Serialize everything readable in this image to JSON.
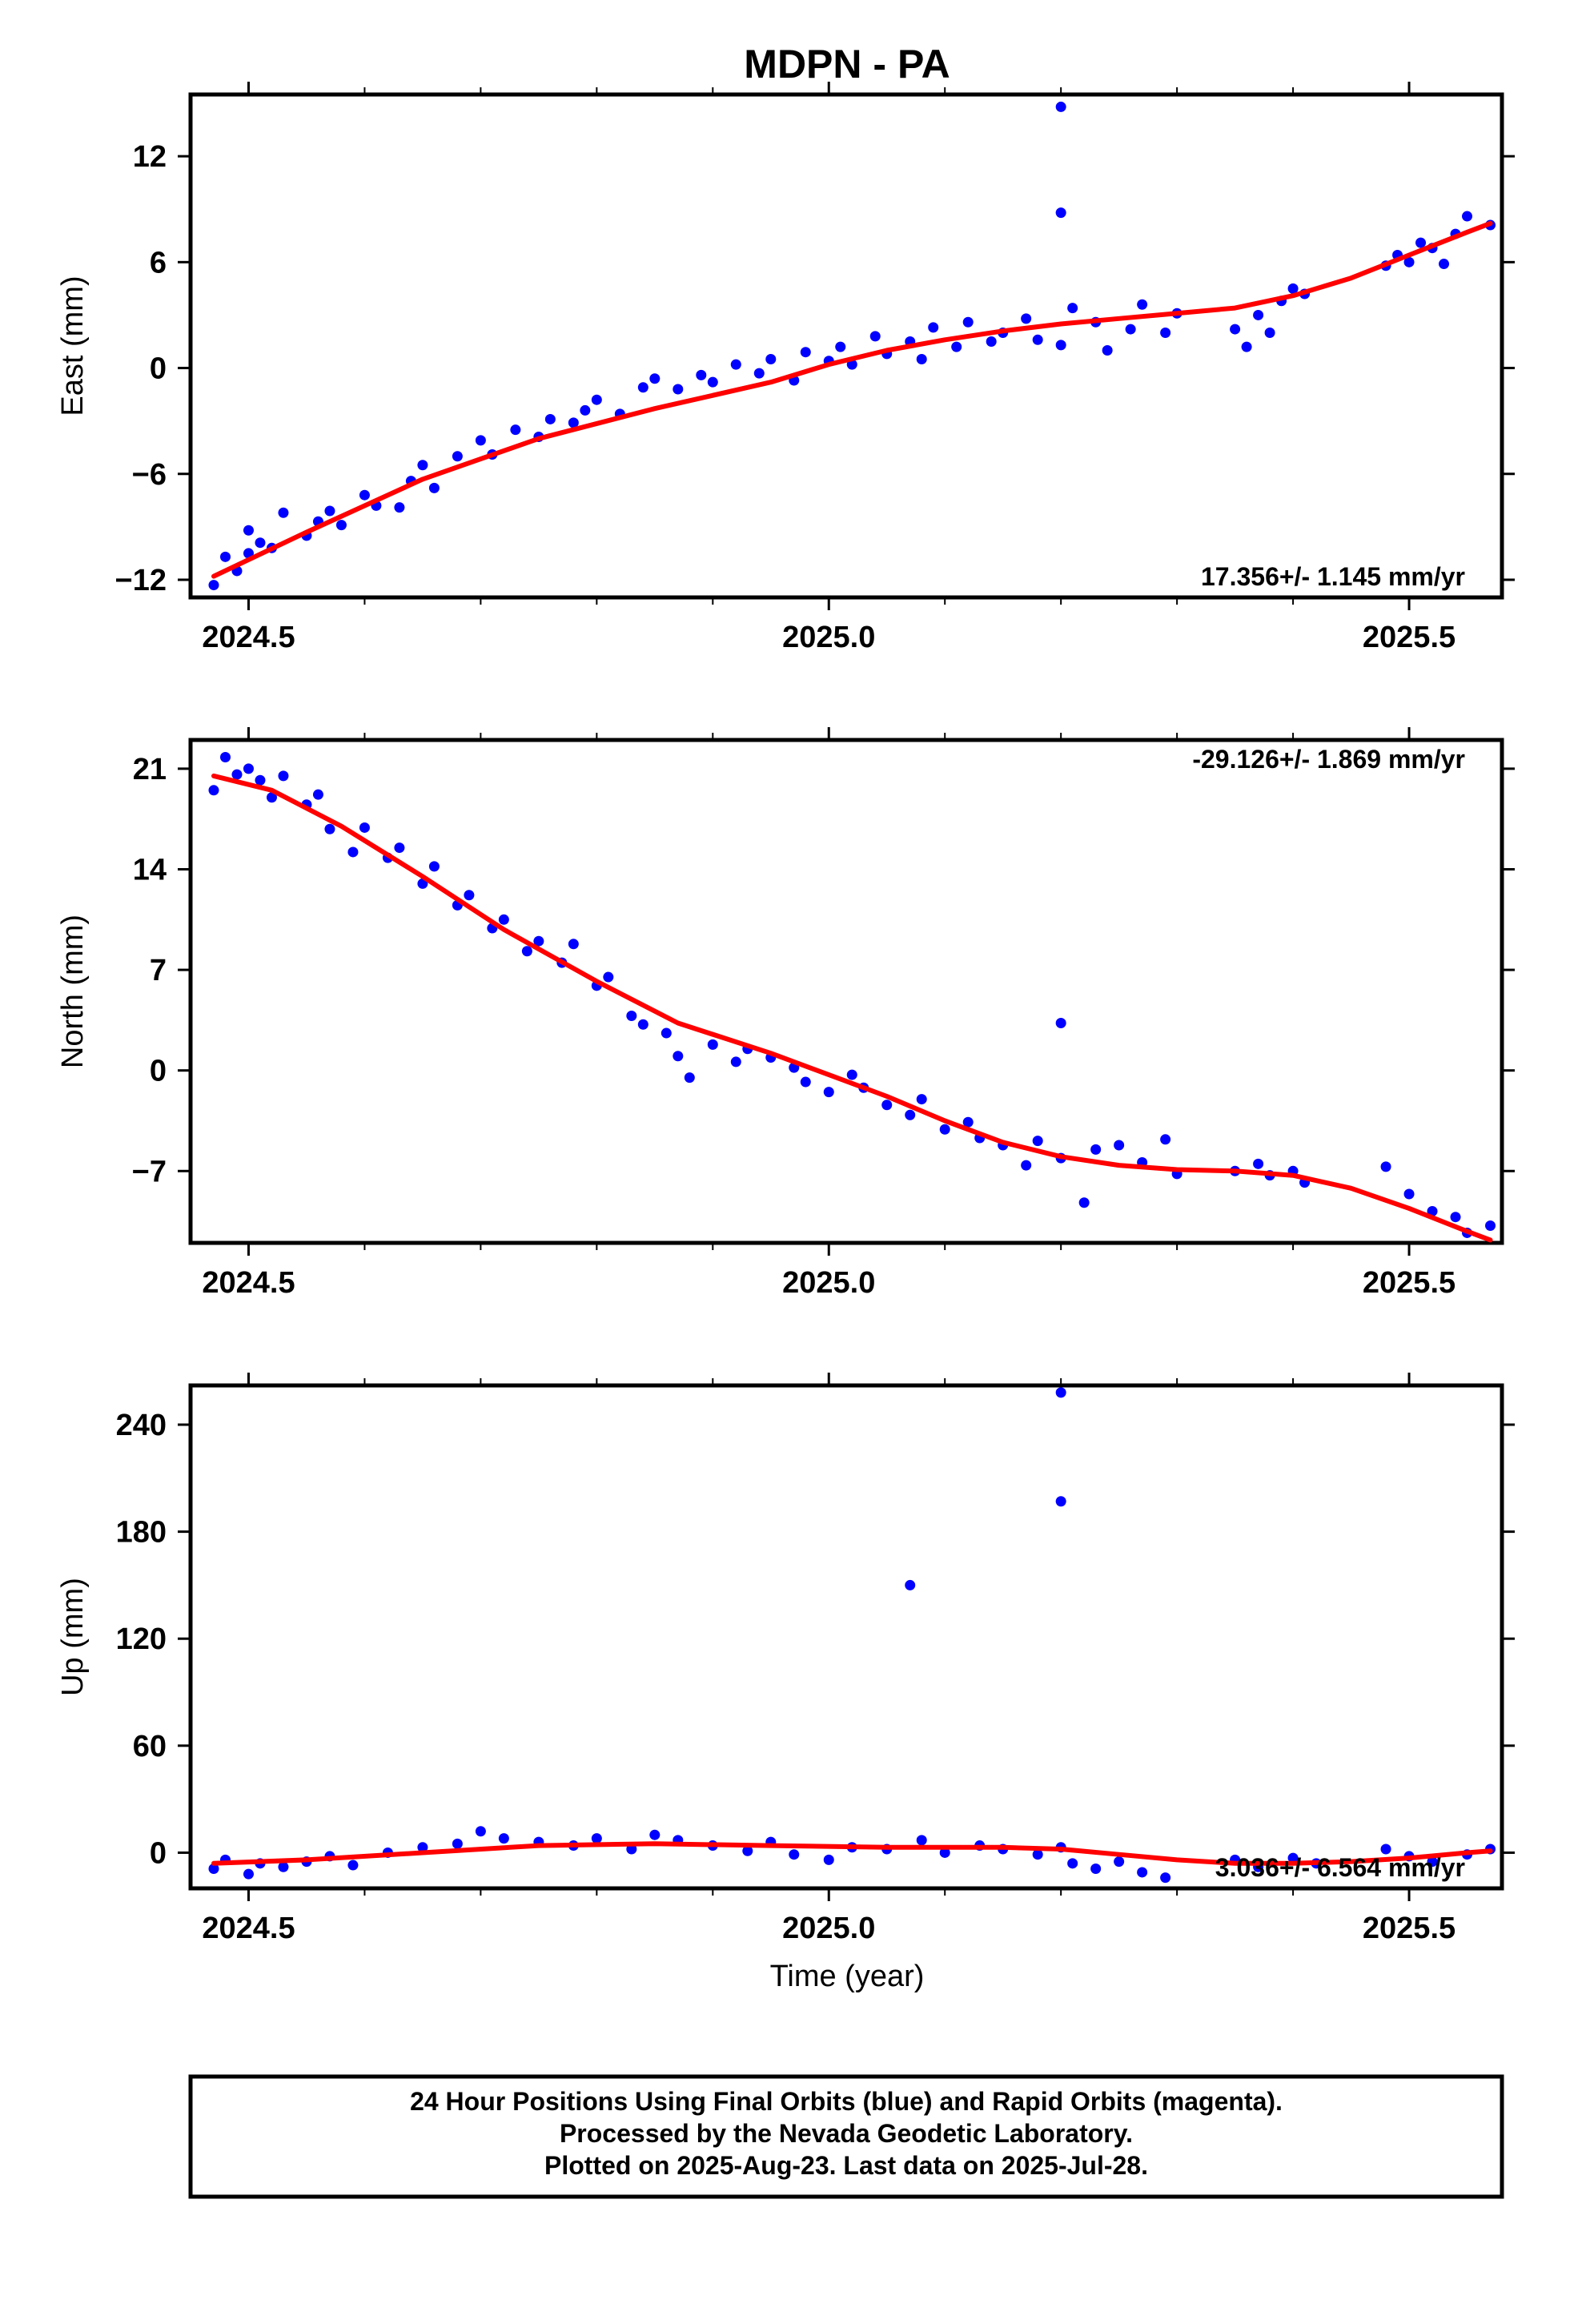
{
  "chart_data": {
    "type": "scatter",
    "title": "MDPN - PA",
    "xlabel": "Time (year)",
    "xlim": [
      2024.45,
      2025.58
    ],
    "series_colors": {
      "final_orbits": "#0000ff",
      "fit": "#ff0000"
    },
    "panels": [
      {
        "name": "east",
        "ylabel": "East (mm)",
        "ylim": [
          -13,
          15.5
        ],
        "yticks": [
          -12,
          -6,
          0,
          6,
          12
        ],
        "ytick_labels": [
          "−12",
          "−6",
          "0",
          "6",
          "12"
        ],
        "xticks": [
          2024.5,
          2025.0,
          2025.5
        ],
        "xtick_labels": [
          "2024.5",
          "2025.0",
          "2025.5"
        ],
        "rate_text": "17.356+/- 1.145 mm/yr",
        "rate_position": "bottom-right",
        "fit": {
          "x": [
            2024.47,
            2024.55,
            2024.65,
            2024.75,
            2024.85,
            2024.95,
            2025.0,
            2025.05,
            2025.1,
            2025.15,
            2025.2,
            2025.25,
            2025.3,
            2025.35,
            2025.4,
            2025.45,
            2025.5,
            2025.55,
            2025.57
          ],
          "y": [
            -11.8,
            -9.3,
            -6.3,
            -4.0,
            -2.3,
            -0.8,
            0.2,
            1.0,
            1.6,
            2.1,
            2.5,
            2.8,
            3.1,
            3.4,
            4.1,
            5.1,
            6.4,
            7.7,
            8.2
          ]
        },
        "outliers": {
          "x": [
            2025.2,
            2025.2
          ],
          "y": [
            14.8,
            8.8
          ]
        },
        "series": [
          {
            "name": "Final Orbits",
            "x": [
              2024.47,
              2024.48,
              2024.49,
              2024.5,
              2024.5,
              2024.51,
              2024.52,
              2024.53,
              2024.55,
              2024.56,
              2024.57,
              2024.58,
              2024.6,
              2024.61,
              2024.63,
              2024.64,
              2024.65,
              2024.66,
              2024.68,
              2024.7,
              2024.71,
              2024.73,
              2024.75,
              2024.76,
              2024.78,
              2024.79,
              2024.8,
              2024.82,
              2024.84,
              2024.85,
              2024.87,
              2024.89,
              2024.9,
              2024.92,
              2024.94,
              2024.95,
              2024.97,
              2024.98,
              2025.0,
              2025.01,
              2025.02,
              2025.04,
              2025.05,
              2025.07,
              2025.08,
              2025.09,
              2025.11,
              2025.12,
              2025.14,
              2025.15,
              2025.17,
              2025.18,
              2025.2,
              2025.21,
              2025.23,
              2025.24,
              2025.26,
              2025.27,
              2025.29,
              2025.3,
              2025.35,
              2025.36,
              2025.37,
              2025.38,
              2025.39,
              2025.4,
              2025.41,
              2025.48,
              2025.49,
              2025.5,
              2025.51,
              2025.52,
              2025.53,
              2025.54,
              2025.55,
              2025.57
            ],
            "y": [
              -12.3,
              -10.7,
              -11.5,
              -9.2,
              -10.5,
              -9.9,
              -10.2,
              -8.2,
              -9.5,
              -8.7,
              -8.1,
              -8.9,
              -7.2,
              -7.8,
              -7.9,
              -6.4,
              -5.5,
              -6.8,
              -5.0,
              -4.1,
              -4.9,
              -3.5,
              -3.9,
              -2.9,
              -3.1,
              -2.4,
              -1.8,
              -2.6,
              -1.1,
              -0.6,
              -1.2,
              -0.4,
              -0.8,
              0.2,
              -0.3,
              0.5,
              -0.7,
              0.9,
              0.4,
              1.2,
              0.2,
              1.8,
              0.8,
              1.5,
              0.5,
              2.3,
              1.2,
              2.6,
              1.5,
              2.0,
              2.8,
              1.6,
              1.3,
              3.4,
              2.6,
              1.0,
              2.2,
              3.6,
              2.0,
              3.1,
              2.2,
              1.2,
              3.0,
              2.0,
              3.8,
              4.5,
              4.2,
              5.8,
              6.4,
              6.0,
              7.1,
              6.8,
              5.9,
              7.6,
              8.6,
              8.1
            ]
          }
        ]
      },
      {
        "name": "north",
        "ylabel": "North (mm)",
        "ylim": [
          -12,
          23
        ],
        "yticks": [
          -7,
          0,
          7,
          14,
          21
        ],
        "ytick_labels": [
          "−7",
          "0",
          "7",
          "14",
          "21"
        ],
        "xticks": [
          2024.5,
          2025.0,
          2025.5
        ],
        "xtick_labels": [
          "2024.5",
          "2025.0",
          "2025.5"
        ],
        "rate_text": "-29.126+/- 1.869 mm/yr",
        "rate_position": "top-right",
        "fit": {
          "x": [
            2024.47,
            2024.52,
            2024.58,
            2024.65,
            2024.72,
            2024.8,
            2024.87,
            2024.95,
            2025.0,
            2025.05,
            2025.1,
            2025.15,
            2025.2,
            2025.25,
            2025.3,
            2025.35,
            2025.4,
            2025.45,
            2025.5,
            2025.55,
            2025.57
          ],
          "y": [
            20.5,
            19.5,
            17.0,
            13.5,
            9.8,
            6.2,
            3.3,
            1.2,
            -0.3,
            -1.8,
            -3.5,
            -5.0,
            -6.0,
            -6.6,
            -6.9,
            -7.0,
            -7.3,
            -8.2,
            -9.6,
            -11.2,
            -11.8
          ]
        },
        "outliers": {
          "x": [
            2025.2
          ],
          "y": [
            3.3
          ]
        },
        "series": [
          {
            "name": "Final Orbits",
            "x": [
              2024.47,
              2024.48,
              2024.49,
              2024.5,
              2024.51,
              2024.52,
              2024.53,
              2024.55,
              2024.56,
              2024.57,
              2024.59,
              2024.6,
              2024.62,
              2024.63,
              2024.65,
              2024.66,
              2024.68,
              2024.69,
              2024.71,
              2024.72,
              2024.74,
              2024.75,
              2024.77,
              2024.78,
              2024.8,
              2024.81,
              2024.83,
              2024.84,
              2024.86,
              2024.87,
              2024.88,
              2024.9,
              2024.92,
              2024.93,
              2024.95,
              2024.97,
              2024.98,
              2025.0,
              2025.02,
              2025.03,
              2025.05,
              2025.07,
              2025.08,
              2025.1,
              2025.12,
              2025.13,
              2025.15,
              2025.17,
              2025.18,
              2025.2,
              2025.22,
              2025.23,
              2025.25,
              2025.27,
              2025.29,
              2025.3,
              2025.35,
              2025.37,
              2025.38,
              2025.4,
              2025.41,
              2025.48,
              2025.5,
              2025.52,
              2025.54,
              2025.55,
              2025.57
            ],
            "y": [
              19.5,
              21.8,
              20.6,
              21.0,
              20.2,
              19.0,
              20.5,
              18.5,
              19.2,
              16.8,
              15.2,
              16.9,
              14.8,
              15.5,
              13.0,
              14.2,
              11.5,
              12.2,
              9.9,
              10.5,
              8.3,
              9.0,
              7.5,
              8.8,
              5.9,
              6.5,
              3.8,
              3.2,
              2.6,
              1.0,
              -0.5,
              1.8,
              0.6,
              1.5,
              0.9,
              0.2,
              -0.8,
              -1.5,
              -0.3,
              -1.2,
              -2.4,
              -3.1,
              -2.0,
              -4.1,
              -3.6,
              -4.7,
              -5.2,
              -6.6,
              -4.9,
              -6.1,
              -9.2,
              -5.5,
              -5.2,
              -6.4,
              -4.8,
              -7.2,
              -7.0,
              -6.5,
              -7.3,
              -7.0,
              -7.8,
              -6.7,
              -8.6,
              -9.8,
              -10.2,
              -11.3,
              -10.8
            ]
          }
        ]
      },
      {
        "name": "up",
        "ylabel": "Up (mm)",
        "ylim": [
          -20,
          262
        ],
        "yticks": [
          0,
          60,
          120,
          180,
          240
        ],
        "ytick_labels": [
          "0",
          "60",
          "120",
          "180",
          "240"
        ],
        "xticks": [
          2024.5,
          2025.0,
          2025.5
        ],
        "xtick_labels": [
          "2024.5",
          "2025.0",
          "2025.5"
        ],
        "xlabel_shown": "Time (year)",
        "rate_text": "3.036+/- 6.564 mm/yr",
        "rate_position": "bottom-right",
        "fit": {
          "x": [
            2024.47,
            2024.55,
            2024.65,
            2024.75,
            2024.85,
            2024.95,
            2025.05,
            2025.15,
            2025.2,
            2025.25,
            2025.3,
            2025.35,
            2025.4,
            2025.45,
            2025.5,
            2025.55,
            2025.57
          ],
          "y": [
            -6,
            -4,
            0,
            4,
            5,
            4,
            3,
            3,
            2,
            -1,
            -4,
            -6,
            -6,
            -5,
            -3,
            0,
            1
          ]
        },
        "outliers": {
          "x": [
            2025.07,
            2025.2,
            2025.2
          ],
          "y": [
            150,
            258,
            197
          ]
        },
        "series": [
          {
            "name": "Final Orbits",
            "x": [
              2024.47,
              2024.48,
              2024.5,
              2024.51,
              2024.53,
              2024.55,
              2024.57,
              2024.59,
              2024.62,
              2024.65,
              2024.68,
              2024.7,
              2024.72,
              2024.75,
              2024.78,
              2024.8,
              2024.83,
              2024.85,
              2024.87,
              2024.9,
              2024.93,
              2024.95,
              2024.97,
              2025.0,
              2025.02,
              2025.05,
              2025.08,
              2025.1,
              2025.13,
              2025.15,
              2025.18,
              2025.2,
              2025.21,
              2025.23,
              2025.25,
              2025.27,
              2025.29,
              2025.35,
              2025.37,
              2025.4,
              2025.42,
              2025.48,
              2025.5,
              2025.52,
              2025.55,
              2025.57
            ],
            "y": [
              -9,
              -4,
              -12,
              -6,
              -8,
              -5,
              -2,
              -7,
              0,
              3,
              5,
              12,
              8,
              6,
              4,
              8,
              2,
              10,
              7,
              4,
              1,
              6,
              -1,
              -4,
              3,
              2,
              7,
              0,
              4,
              2,
              -1,
              3,
              -6,
              -9,
              -5,
              -11,
              -14,
              -4,
              -8,
              -3,
              -6,
              2,
              -2,
              -5,
              -1,
              2
            ]
          }
        ]
      }
    ],
    "footer": {
      "line1": "24 Hour Positions Using Final Orbits (blue) and Rapid Orbits (magenta).",
      "line2": "Processed by the Nevada Geodetic Laboratory.",
      "line3": "Plotted on 2025-Aug-23. Last data on 2025-Jul-28."
    }
  }
}
